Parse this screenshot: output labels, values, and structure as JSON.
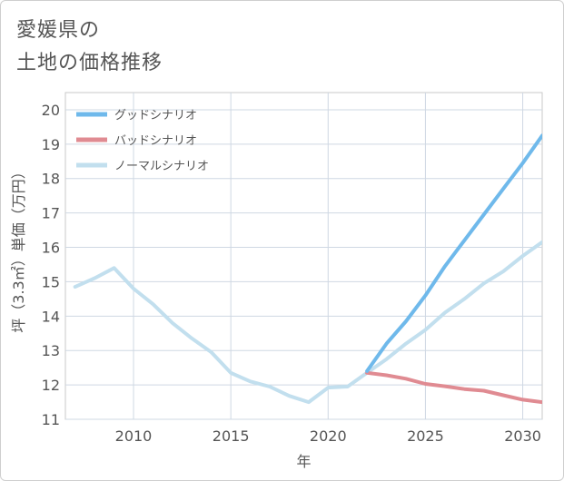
{
  "title_lines": [
    "愛媛県の",
    "土地の価格推移"
  ],
  "chart_data": {
    "type": "line",
    "xlabel": "年",
    "ylabel": "坪（3.3㎡）単価（万円）",
    "xlim": [
      2006.5,
      2031
    ],
    "ylim": [
      11,
      20.5
    ],
    "x_ticks": [
      2010,
      2015,
      2020,
      2025,
      2030
    ],
    "y_ticks": [
      11,
      12,
      13,
      14,
      15,
      16,
      17,
      18,
      19,
      20
    ],
    "grid": true,
    "legend_position": "top-left",
    "series": [
      {
        "name": "グッドシナリオ",
        "color": "#6fb9eb",
        "x": [
          2022,
          2023,
          2024,
          2025,
          2026,
          2027,
          2028,
          2029,
          2030,
          2031
        ],
        "y": [
          12.4,
          13.2,
          13.85,
          14.6,
          15.45,
          16.2,
          16.95,
          17.7,
          18.45,
          19.25
        ]
      },
      {
        "name": "バッドシナリオ",
        "color": "#e08b92",
        "x": [
          2022,
          2023,
          2024,
          2025,
          2026,
          2027,
          2028,
          2029,
          2030,
          2031
        ],
        "y": [
          12.35,
          12.28,
          12.18,
          12.03,
          11.96,
          11.88,
          11.83,
          11.7,
          11.57,
          11.5
        ]
      },
      {
        "name": "ノーマルシナリオ",
        "color": "#c2dfee",
        "x": [
          2007,
          2008,
          2009,
          2010,
          2011,
          2012,
          2013,
          2014,
          2015,
          2016,
          2017,
          2018,
          2019,
          2020,
          2021,
          2022,
          2023,
          2024,
          2025,
          2026,
          2027,
          2028,
          2029,
          2030,
          2031
        ],
        "y": [
          14.85,
          15.1,
          15.4,
          14.8,
          14.35,
          13.8,
          13.35,
          12.95,
          12.35,
          12.1,
          11.95,
          11.68,
          11.5,
          11.92,
          11.95,
          12.35,
          12.75,
          13.2,
          13.6,
          14.1,
          14.5,
          14.95,
          15.3,
          15.75,
          16.15
        ]
      }
    ]
  }
}
